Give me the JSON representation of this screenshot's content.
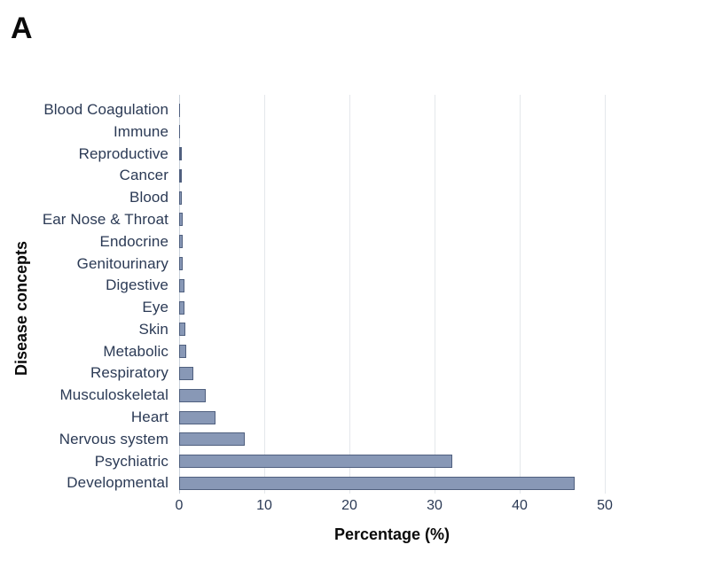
{
  "panel_label": "A",
  "chart_data": {
    "type": "bar",
    "orientation": "horizontal",
    "title": "",
    "xlabel": "Percentage (%)",
    "ylabel": "Disease concepts",
    "xlim": [
      0,
      52
    ],
    "x_ticks": [
      0,
      10,
      20,
      30,
      40,
      50
    ],
    "grid": true,
    "legend": "none",
    "categories": [
      "Blood Coagulation",
      "Immune",
      "Reproductive",
      "Cancer",
      "Blood",
      "Ear Nose & Throat",
      "Endocrine",
      "Genitourinary",
      "Digestive",
      "Eye",
      "Skin",
      "Metabolic",
      "Respiratory",
      "Musculoskeletal",
      "Heart",
      "Nervous system",
      "Psychiatric",
      "Developmental"
    ],
    "values": [
      0.05,
      0.1,
      0.3,
      0.3,
      0.35,
      0.4,
      0.4,
      0.45,
      0.6,
      0.65,
      0.7,
      0.8,
      1.7,
      3.1,
      4.3,
      7.7,
      32.1,
      46.5
    ],
    "colors": {
      "bar_fill": "#8898B6",
      "bar_border": "#50607F",
      "label_text": "#2B3A55",
      "tick_text": "#2B3A55",
      "gridline": "#E4E7EB",
      "zero_gridline": "#C9D1DB",
      "axis_title_text": "#0A0A0A"
    }
  }
}
